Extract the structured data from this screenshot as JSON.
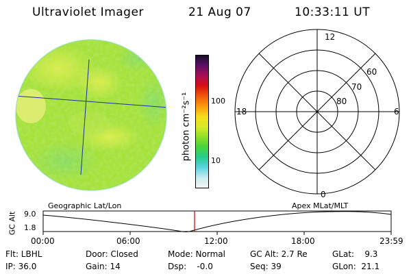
{
  "header": {
    "title": "Ultraviolet Imager",
    "date": "21 Aug 07",
    "time": "10:33:11 UT"
  },
  "colorbar": {
    "unit_label": "photon cm⁻²s⁻¹",
    "ticks": [
      "100",
      "10"
    ],
    "colors": [
      "#f4f4f4",
      "#c8ecf0",
      "#59d4e0",
      "#27cc8e",
      "#46d43c",
      "#8fdf27",
      "#d9ec28",
      "#f6dc1c",
      "#fb9a0c",
      "#f15a0a",
      "#d80f12",
      "#aa0d55",
      "#5e1066",
      "#160c2a"
    ]
  },
  "polar_plot": {
    "mlt_labels": {
      "top": "12",
      "left": "18",
      "right": "6",
      "bottom": "0"
    },
    "lat_labels": [
      "60",
      "70",
      "80"
    ]
  },
  "timeline": {
    "left_title": "Geographic Lat/Lon",
    "right_title": "Apex MLat/MLT",
    "axis_label": "GC Alt",
    "y_ticks": [
      "9.0",
      "1.8"
    ],
    "x_ticks": [
      "00:00",
      "06:00",
      "12:00",
      "18:00",
      "23:59"
    ],
    "current_marker_color": "#cc0000"
  },
  "status": {
    "row1": [
      "Flt: LBHL",
      "Door: Closed",
      "Mode: Normal",
      "GC Alt: 2.7 Re",
      "GLat:    9.3"
    ],
    "row2": [
      "IP: 36.0",
      "Gain: 14",
      "Dsp:    -0.0",
      "Seq: 39",
      "GLon:  21.1"
    ]
  },
  "colors": {
    "earth_base": "#a6e23c",
    "earth_highlight": "#d8ee4a",
    "earth_edge": "#7ed6a6",
    "geo_line": "#1a2ea8"
  }
}
